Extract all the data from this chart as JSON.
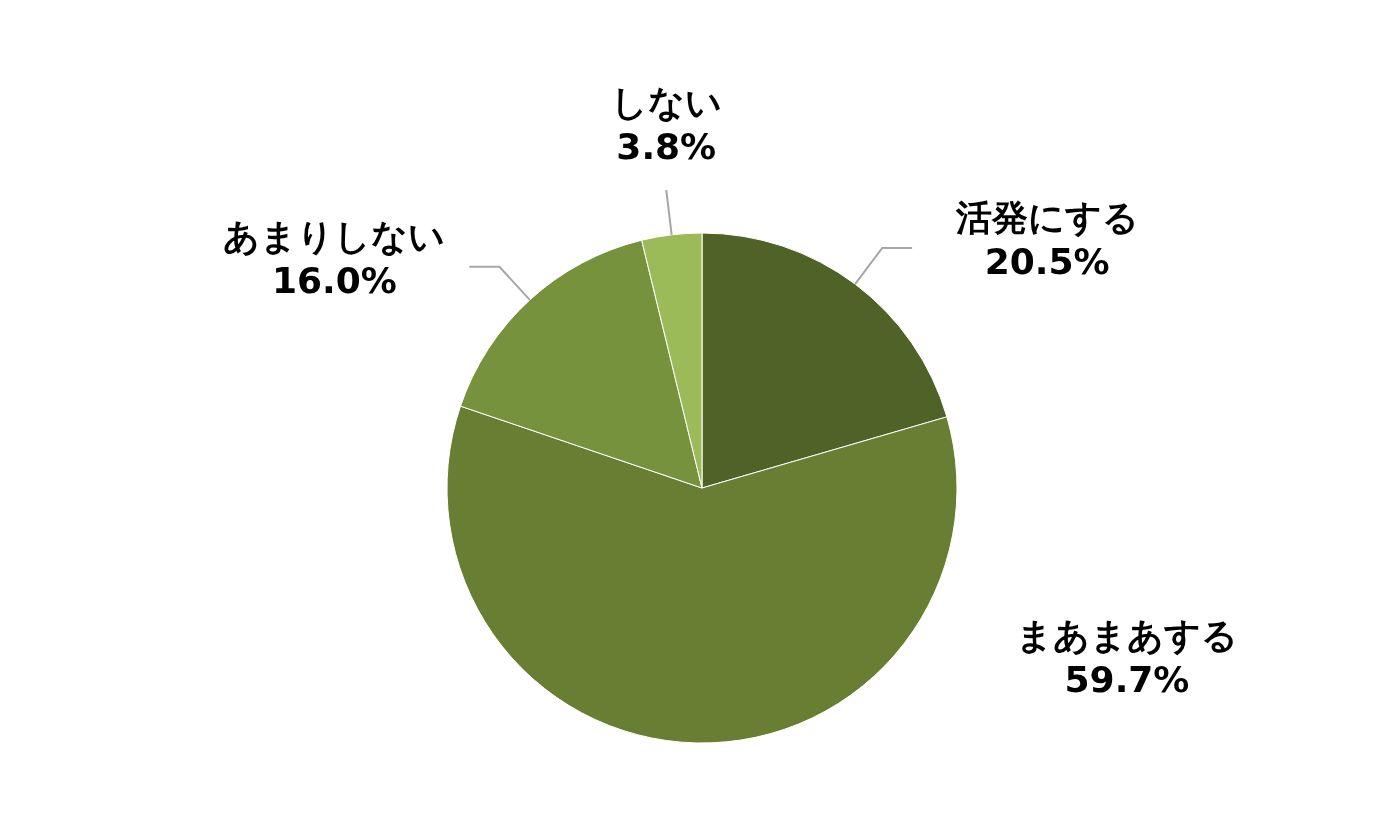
{
  "chart_data": {
    "type": "pie",
    "categories": [
      "活発にする",
      "まあまあする",
      "あまりしない",
      "しない"
    ],
    "values": [
      20.5,
      59.7,
      16.0,
      3.8
    ],
    "value_labels": [
      "20.5%",
      "59.7%",
      "16.0%",
      "3.8%"
    ],
    "colors": [
      "#4f6228",
      "#687f33",
      "#77923c",
      "#9bbb59"
    ]
  }
}
